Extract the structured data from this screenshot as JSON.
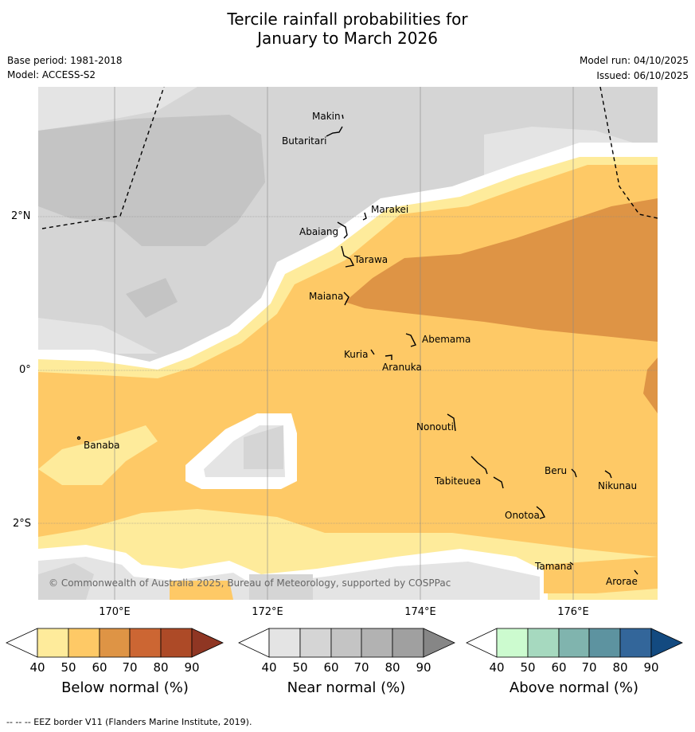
{
  "title_line1": "Tercile rainfall probabilities for",
  "title_line2": "January to March 2026",
  "base_period": "Base period: 1981-2018",
  "model": "Model: ACCESS-S2",
  "model_run": "Model run: 04/10/2025",
  "issued": "Issued: 06/10/2025",
  "copyright": "© Commonwealth of Australia 2025, Bureau of Meteorology, supported by COSPPac",
  "lat_labels": [
    "2°N",
    "0°",
    "2°S"
  ],
  "lon_labels": [
    "170°E",
    "172°E",
    "174°E",
    "176°E"
  ],
  "places": {
    "makin": "Makin",
    "butaritari": "Butaritari",
    "marakei": "Marakei",
    "abaiang": "Abaiang",
    "tarawa": "Tarawa",
    "maiana": "Maiana",
    "abemama": "Abemama",
    "kuria": "Kuria",
    "aranuka": "Aranuka",
    "nonouti": "Nonouti",
    "banaba": "Banaba",
    "beru": "Beru",
    "nikunau": "Nikunau",
    "tabiteuea": "Tabiteuea",
    "onotoa": "Onotoa",
    "tamana": "Tamana",
    "arorae": "Arorae"
  },
  "colorbars": {
    "below": {
      "title": "Below normal (%)",
      "colors": [
        "#ffffff",
        "#feeb9b",
        "#fec966",
        "#de9445",
        "#cc6633",
        "#ad4a27",
        "#8f3623"
      ]
    },
    "near": {
      "title": "Near normal (%)",
      "colors": [
        "#ffffff",
        "#e4e4e4",
        "#d5d5d5",
        "#c4c4c4",
        "#b2b2b2",
        "#a0a0a0",
        "#868686"
      ]
    },
    "above": {
      "title": "Above normal (%)",
      "colors": [
        "#ffffff",
        "#ccfbcf",
        "#a6d9bf",
        "#80b4ae",
        "#5d93a0",
        "#33669a",
        "#134a80"
      ]
    },
    "ticks": [
      "40",
      "50",
      "60",
      "70",
      "80",
      "90"
    ]
  },
  "footer": "--  --  -- EEZ border V11 (Flanders Marine Institute, 2019)."
}
